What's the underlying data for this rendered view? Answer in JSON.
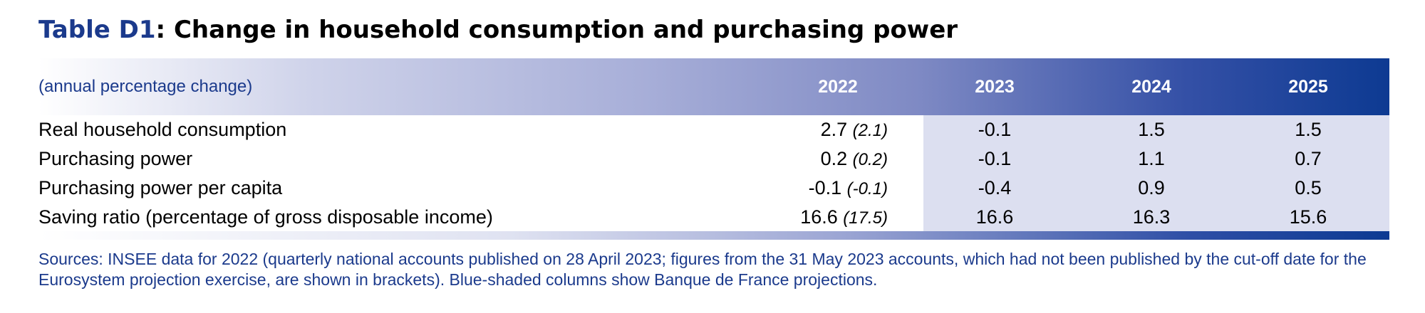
{
  "title": {
    "id": "Table D1",
    "text": ": Change in household consumption and purchasing power"
  },
  "table": {
    "unit_label": "(annual percentage change)",
    "years": [
      "2022",
      "2023",
      "2024",
      "2025"
    ],
    "rows": [
      {
        "label": "Real household consumption",
        "y2022": "2.7",
        "y2022_bracket": "(2.1)",
        "y2023": "-0.1",
        "y2024": "1.5",
        "y2025": "1.5"
      },
      {
        "label": "Purchasing power",
        "y2022": "0.2",
        "y2022_bracket": "(0.2)",
        "y2023": "-0.1",
        "y2024": "1.1",
        "y2025": "0.7"
      },
      {
        "label": "Purchasing power per capita",
        "y2022": "-0.1",
        "y2022_bracket": "(-0.1)",
        "y2023": "-0.4",
        "y2024": "0.9",
        "y2025": "0.5"
      },
      {
        "label": "Saving ratio (percentage of gross disposable income)",
        "y2022": "16.6",
        "y2022_bracket": "(17.5)",
        "y2023": "16.6",
        "y2024": "16.3",
        "y2025": "15.6"
      }
    ]
  },
  "sources": "Sources: INSEE data for 2022 (quarterly national accounts published on 28 April 2023; figures from the 31 May 2023 accounts, which had not been published by the cut-off date for the Eurosystem projection exercise, are shown in brackets). Blue-shaded columns show Banque de France projections.",
  "colors": {
    "title_id": "#1b3a8c",
    "header_dark": "#0d3a92",
    "projection_shade": "#dcdff0",
    "sources_text": "#1b3a8c"
  }
}
